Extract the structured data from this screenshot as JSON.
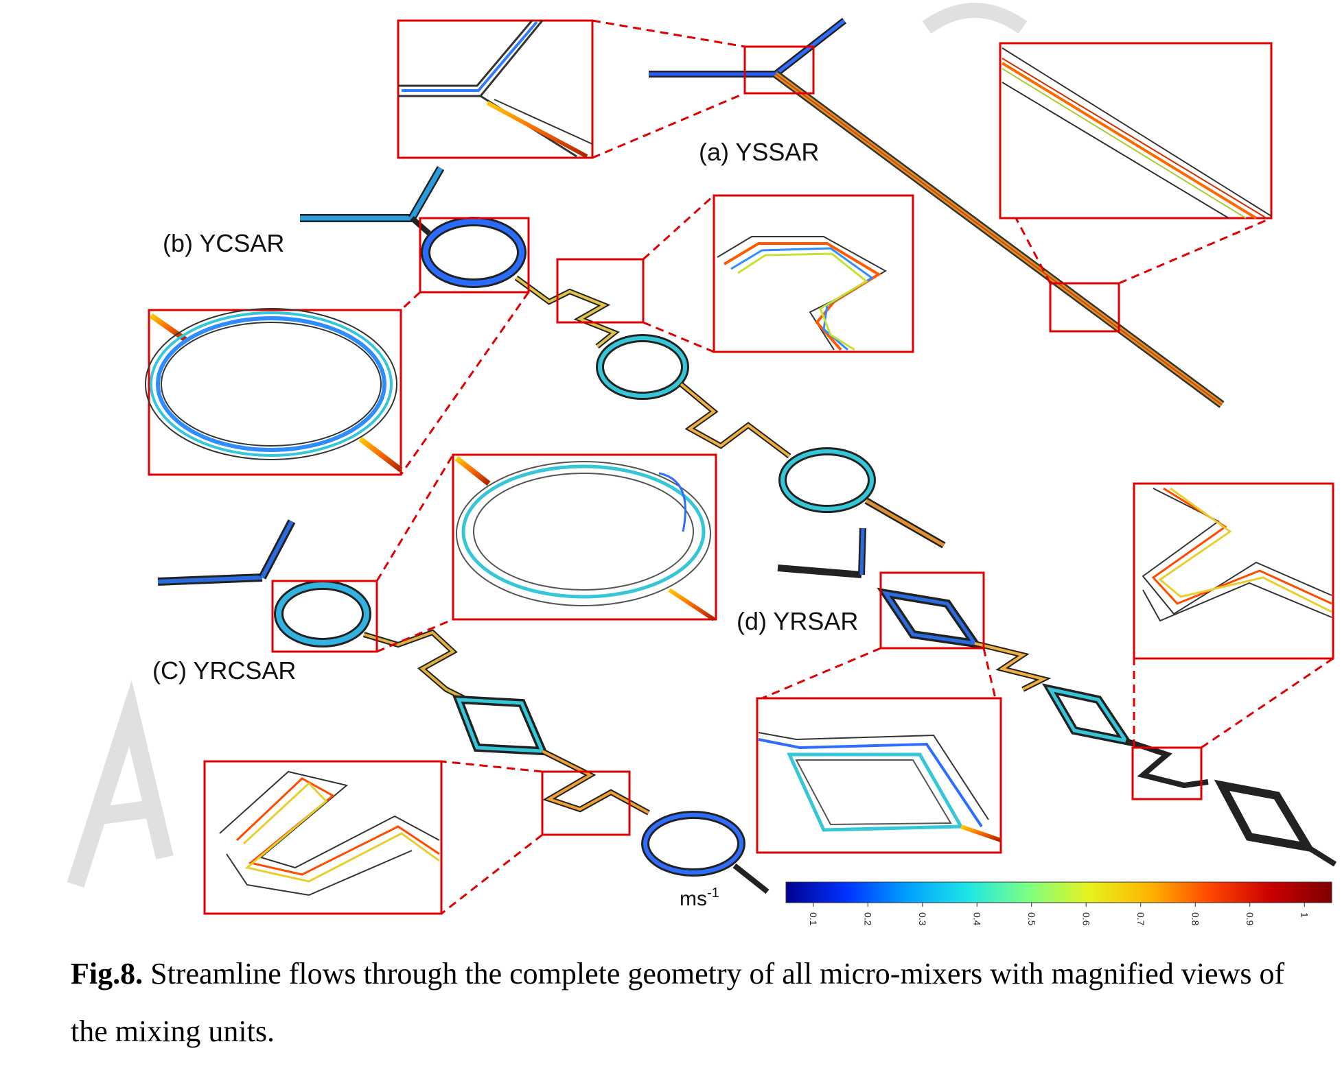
{
  "panels": {
    "a": "(a) YSSAR",
    "b": "(b) YCSAR",
    "c": "(C) YRCSAR",
    "d": "(d) YRSAR"
  },
  "colorbar": {
    "unit_base": "ms",
    "unit_exp": "-1",
    "ticks": [
      "0.1",
      "0.2",
      "0.3",
      "0.4",
      "0.5",
      "0.6",
      "0.7",
      "0.8",
      "0.9",
      "1"
    ],
    "stops": [
      "#00008f",
      "#0033ff",
      "#00a0ff",
      "#1ee6e6",
      "#7dff82",
      "#e6f21e",
      "#ffb400",
      "#ff4600",
      "#c80000",
      "#800000"
    ]
  },
  "caption": {
    "label": "Fig.8.",
    "text": " Streamline flows through the complete geometry of all micro-mixers with magnified views of the mixing units."
  },
  "colors": {
    "zoom_box": "#e00000",
    "channel_dark": "#222222"
  }
}
